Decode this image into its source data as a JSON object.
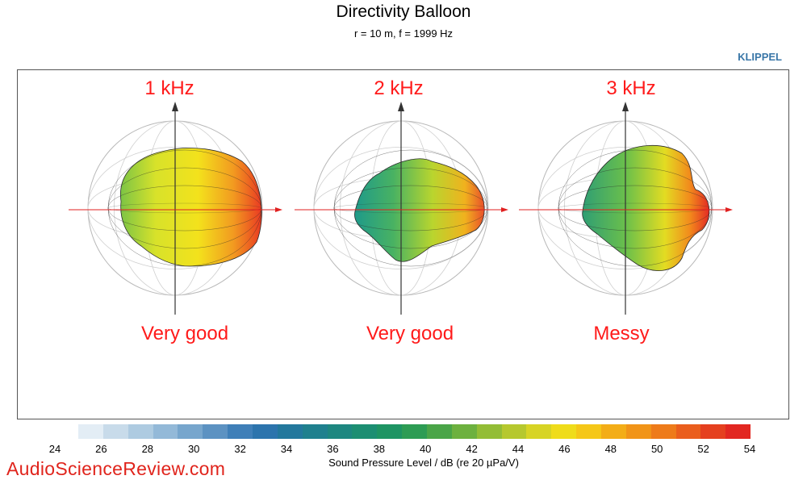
{
  "header": {
    "title": "Directivity Balloon",
    "subtitle": "r = 10 m, f =  1999 Hz",
    "brand": "KLIPPEL"
  },
  "annotations": [
    {
      "freq": "1 kHz",
      "verdict": "Very good"
    },
    {
      "freq": "2 kHz",
      "verdict": "Very good"
    },
    {
      "freq": "3 kHz",
      "verdict": "Messy"
    }
  ],
  "watermark": "AudioScienceReview.com",
  "colors": {
    "annotation": "#ff1a1a",
    "watermark": "#e0241c",
    "brand": "#3a77a8",
    "axis_arrow": "#e02020"
  },
  "chart_data": {
    "type": "heatmap",
    "title": "Directivity Balloon",
    "subtitle": "r = 10 m, f =  1999 Hz",
    "panels": [
      "1 kHz",
      "2 kHz",
      "3 kHz"
    ],
    "colorbar": {
      "label": "Sound Pressure Level / dB (re 20 µPa/V)",
      "range": [
        24,
        54
      ],
      "ticks": [
        24,
        26,
        28,
        30,
        32,
        34,
        36,
        38,
        40,
        42,
        44,
        46,
        48,
        50,
        52,
        54
      ],
      "colors": [
        "#e3edf5",
        "#c8dbea",
        "#aecbe1",
        "#93b9d8",
        "#77a6cd",
        "#5c92c2",
        "#3f7fb8",
        "#2c74ad",
        "#23789d",
        "#1f808e",
        "#1d8780",
        "#1c8e72",
        "#1e9463",
        "#2d9c54",
        "#4aa548",
        "#6db13f",
        "#93bd36",
        "#b6c82e",
        "#d7d425",
        "#efdc1a",
        "#f5c718",
        "#f3ad17",
        "#f19418",
        "#ee7b1a",
        "#ea5e1d",
        "#e5401f",
        "#e22721"
      ]
    }
  }
}
